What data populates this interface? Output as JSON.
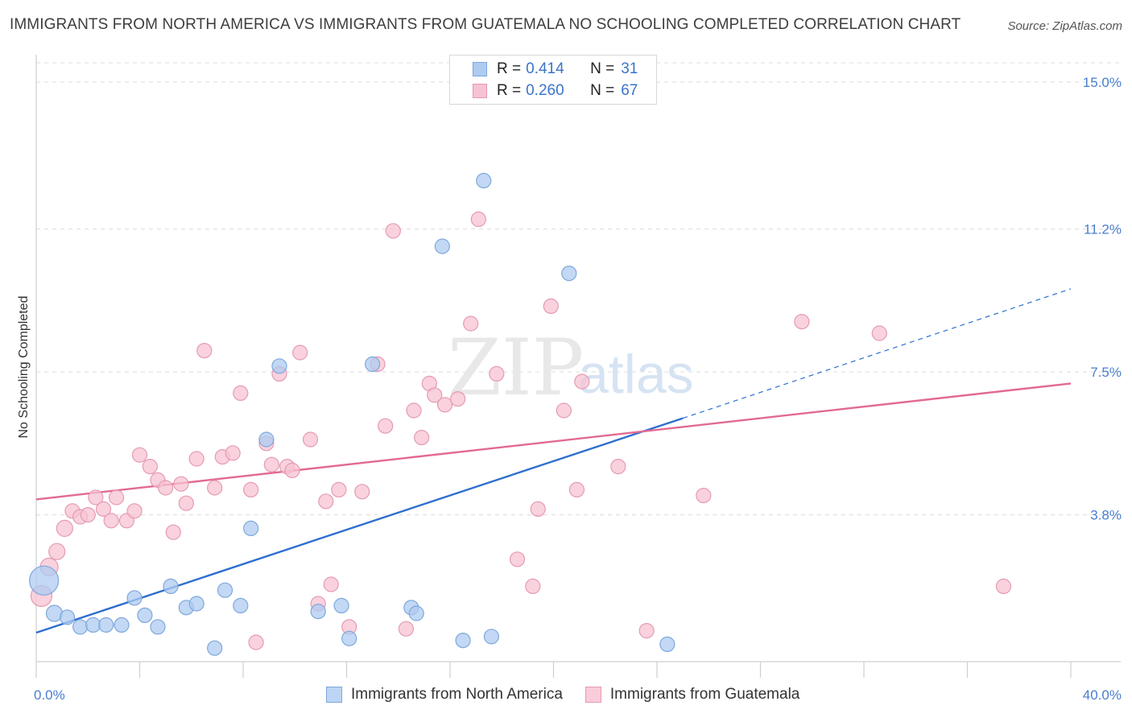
{
  "title": "IMMIGRANTS FROM NORTH AMERICA VS IMMIGRANTS FROM GUATEMALA NO SCHOOLING COMPLETED CORRELATION CHART",
  "source": "Source: ZipAtlas.com",
  "watermark": {
    "zip": "ZIP",
    "atlas": "atlas"
  },
  "legend": {
    "rows": [
      {
        "r_label": "R =",
        "r_value": "0.414",
        "n_label": "N =",
        "n_value": "31",
        "color": "#aecbf0",
        "border": "#7ea8dc"
      },
      {
        "r_label": "R =",
        "r_value": "0.260",
        "n_label": "N =",
        "n_value": "67",
        "color": "#f7c3d2",
        "border": "#e59ab3"
      }
    ]
  },
  "bottom_legend": [
    {
      "label": "Immigrants from North America",
      "color": "#bcd5f4",
      "border": "#7ea8dc"
    },
    {
      "label": "Immigrants from Guatemala",
      "color": "#f9ccd9",
      "border": "#e59ab3"
    }
  ],
  "chart_data": {
    "type": "scatter",
    "ylabel": "No Schooling Completed",
    "xlim": [
      0,
      40
    ],
    "ylim": [
      0,
      15.5
    ],
    "x_tick_labels": [
      "0.0%",
      "40.0%"
    ],
    "y_ticks": [
      {
        "value": 3.8,
        "label": "3.8%"
      },
      {
        "value": 7.5,
        "label": "7.5%"
      },
      {
        "value": 11.2,
        "label": "11.2%"
      },
      {
        "value": 15.0,
        "label": "15.0%"
      }
    ],
    "series": [
      {
        "name": "Immigrants from North America",
        "color": "#aecbf0",
        "stroke": "#7ea8dc",
        "line_color": "#2e6fcf",
        "trend": {
          "x0": 0,
          "y0": 0.75,
          "x1": 25,
          "y1": 6.3,
          "dash_to_x": 40,
          "dash_to_y": 9.65
        },
        "points": [
          [
            0.3,
            2.1,
            18
          ],
          [
            0.7,
            1.25,
            10
          ],
          [
            1.2,
            1.15,
            9
          ],
          [
            1.7,
            0.9,
            9
          ],
          [
            2.2,
            0.95,
            9
          ],
          [
            2.7,
            0.95,
            9
          ],
          [
            3.3,
            0.95,
            9
          ],
          [
            3.8,
            1.65,
            9
          ],
          [
            4.2,
            1.2,
            9
          ],
          [
            4.7,
            0.9,
            9
          ],
          [
            5.2,
            1.95,
            9
          ],
          [
            5.8,
            1.4,
            9
          ],
          [
            6.2,
            1.5,
            9
          ],
          [
            6.9,
            0.35,
            9
          ],
          [
            7.3,
            1.85,
            9
          ],
          [
            7.9,
            1.45,
            9
          ],
          [
            8.3,
            3.45,
            9
          ],
          [
            8.9,
            5.75,
            9
          ],
          [
            9.4,
            7.65,
            9
          ],
          [
            10.9,
            1.3,
            9
          ],
          [
            11.8,
            1.45,
            9
          ],
          [
            12.1,
            0.6,
            9
          ],
          [
            13.0,
            7.7,
            9
          ],
          [
            14.5,
            1.4,
            9
          ],
          [
            14.7,
            1.25,
            9
          ],
          [
            15.7,
            10.75,
            9
          ],
          [
            16.5,
            0.55,
            9
          ],
          [
            17.3,
            12.45,
            9
          ],
          [
            17.6,
            0.65,
            9
          ],
          [
            20.6,
            10.05,
            9
          ],
          [
            24.4,
            0.45,
            9
          ]
        ]
      },
      {
        "name": "Immigrants from Guatemala",
        "color": "#f7c3d2",
        "stroke": "#e59ab3",
        "line_color": "#e26a92",
        "trend": {
          "x0": 0,
          "y0": 4.2,
          "x1": 40,
          "y1": 7.2
        },
        "points": [
          [
            0.2,
            1.7,
            13
          ],
          [
            0.5,
            2.45,
            11
          ],
          [
            0.8,
            2.85,
            10
          ],
          [
            1.1,
            3.45,
            10
          ],
          [
            1.4,
            3.9,
            9
          ],
          [
            1.7,
            3.75,
            9
          ],
          [
            2.0,
            3.8,
            9
          ],
          [
            2.3,
            4.25,
            9
          ],
          [
            2.6,
            3.95,
            9
          ],
          [
            2.9,
            3.65,
            9
          ],
          [
            3.1,
            4.25,
            9
          ],
          [
            3.5,
            3.65,
            9
          ],
          [
            3.8,
            3.9,
            9
          ],
          [
            4.0,
            5.35,
            9
          ],
          [
            4.4,
            5.05,
            9
          ],
          [
            4.7,
            4.7,
            9
          ],
          [
            5.0,
            4.5,
            9
          ],
          [
            5.3,
            3.35,
            9
          ],
          [
            5.6,
            4.6,
            9
          ],
          [
            5.8,
            4.1,
            9
          ],
          [
            6.2,
            5.25,
            9
          ],
          [
            6.5,
            8.05,
            9
          ],
          [
            6.9,
            4.5,
            9
          ],
          [
            7.2,
            5.3,
            9
          ],
          [
            7.6,
            5.4,
            9
          ],
          [
            7.9,
            6.95,
            9
          ],
          [
            8.3,
            4.45,
            9
          ],
          [
            8.5,
            0.5,
            9
          ],
          [
            8.9,
            5.65,
            9
          ],
          [
            9.1,
            5.1,
            9
          ],
          [
            9.4,
            7.45,
            9
          ],
          [
            9.7,
            5.05,
            9
          ],
          [
            9.9,
            4.95,
            9
          ],
          [
            10.2,
            8.0,
            9
          ],
          [
            10.6,
            5.75,
            9
          ],
          [
            10.9,
            1.5,
            9
          ],
          [
            11.2,
            4.15,
            9
          ],
          [
            11.4,
            2.0,
            9
          ],
          [
            11.7,
            4.45,
            9
          ],
          [
            12.1,
            0.9,
            9
          ],
          [
            12.6,
            4.4,
            9
          ],
          [
            13.2,
            7.7,
            9
          ],
          [
            13.5,
            6.1,
            9
          ],
          [
            13.8,
            11.15,
            9
          ],
          [
            14.3,
            0.85,
            9
          ],
          [
            14.6,
            6.5,
            9
          ],
          [
            14.9,
            5.8,
            9
          ],
          [
            15.2,
            7.2,
            9
          ],
          [
            15.4,
            6.9,
            9
          ],
          [
            15.8,
            6.65,
            9
          ],
          [
            16.3,
            6.8,
            9
          ],
          [
            16.8,
            8.75,
            9
          ],
          [
            17.1,
            11.45,
            9
          ],
          [
            17.8,
            7.45,
            9
          ],
          [
            18.6,
            2.65,
            9
          ],
          [
            19.2,
            1.95,
            9
          ],
          [
            19.4,
            3.95,
            9
          ],
          [
            19.9,
            9.2,
            9
          ],
          [
            20.4,
            6.5,
            9
          ],
          [
            20.9,
            4.45,
            9
          ],
          [
            21.1,
            7.25,
            9
          ],
          [
            22.5,
            5.05,
            9
          ],
          [
            23.6,
            0.8,
            9
          ],
          [
            25.8,
            4.3,
            9
          ],
          [
            29.6,
            8.8,
            9
          ],
          [
            32.6,
            8.5,
            9
          ],
          [
            37.4,
            1.95,
            9
          ]
        ]
      }
    ]
  }
}
